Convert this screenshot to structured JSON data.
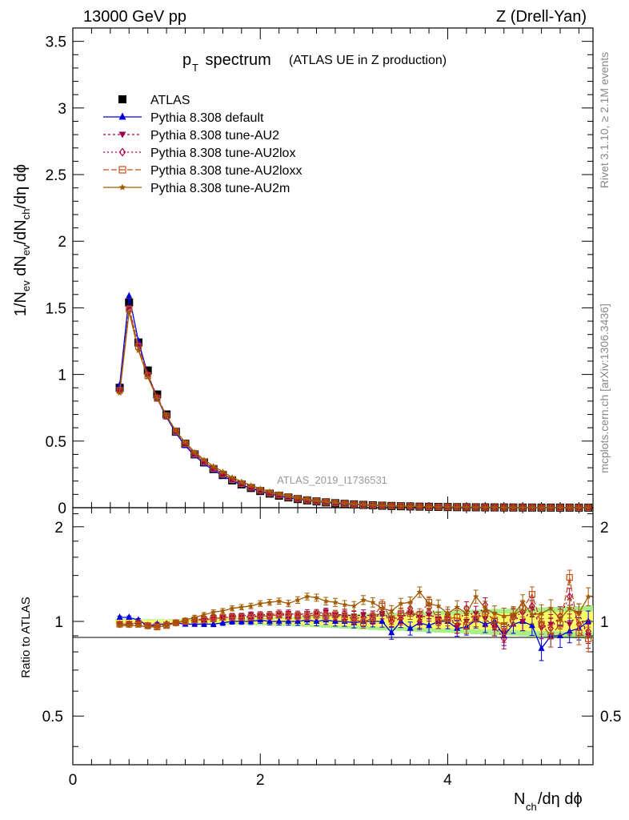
{
  "header": {
    "energy_label": "13000 GeV pp",
    "process_label": "Z (Drell-Yan)"
  },
  "side_labels": {
    "rivet": "Rivet 3.1.10, ≥ 2.1M events",
    "site": "mcplots.cern.ch [arXiv:1306.3436]"
  },
  "watermark": "ATLAS_2019_I1736531",
  "colors": {
    "ATLAS": "#000000",
    "default": "#0000dd",
    "AU2": "#99004d",
    "AU2lox": "#b3003b",
    "AU2loxx": "#c0501a",
    "AU2m": "#a05a00",
    "band_inner": "#ffff66",
    "band_outer": "#aaee88"
  },
  "chart_data": [
    {
      "type": "line",
      "panel": "main",
      "title_main": "p",
      "title_sub": "T",
      "title_word": " spectrum",
      "title_extra": "(ATLAS UE in Z production)",
      "ylabel": "1/N_ev dN_ev/dN_ch/dη dϕ",
      "ylim": [
        0,
        3.6
      ],
      "xlim": [
        0,
        5.55
      ],
      "yticks": [
        "0",
        "0.5",
        "1",
        "1.5",
        "2",
        "2.5",
        "3",
        "3.5"
      ],
      "grid": false,
      "legend_position": "top-left",
      "x": [
        0.5,
        0.6,
        0.7,
        0.8,
        0.9,
        1.0,
        1.1,
        1.2,
        1.3,
        1.4,
        1.5,
        1.6,
        1.7,
        1.8,
        1.9,
        2.0,
        2.1,
        2.2,
        2.3,
        2.4,
        2.5,
        2.6,
        2.7,
        2.8,
        2.9,
        3.0,
        3.1,
        3.2,
        3.3,
        3.4,
        3.5,
        3.6,
        3.7,
        3.8,
        3.9,
        4.0,
        4.1,
        4.2,
        4.3,
        4.4,
        4.5,
        4.6,
        4.7,
        4.8,
        4.9,
        5.0,
        5.1,
        5.2,
        5.3,
        5.4,
        5.5
      ],
      "series": [
        {
          "name": "ATLAS",
          "key": "ATLAS",
          "marker": "square-filled",
          "dash": "none",
          "values": [
            0.9,
            1.54,
            1.24,
            1.03,
            0.85,
            0.7,
            0.57,
            0.48,
            0.4,
            0.34,
            0.29,
            0.245,
            0.205,
            0.175,
            0.148,
            0.125,
            0.106,
            0.09,
            0.077,
            0.065,
            0.055,
            0.047,
            0.04,
            0.034,
            0.029,
            0.025,
            0.021,
            0.018,
            0.015,
            0.013,
            0.011,
            0.0095,
            0.008,
            0.007,
            0.006,
            0.005,
            0.0043,
            0.0037,
            0.0031,
            0.0027,
            0.0023,
            0.002,
            0.0017,
            0.0014,
            0.0012,
            0.001,
            0.0009,
            0.0008,
            0.0007,
            0.0006,
            0.0005
          ]
        },
        {
          "name": "Pythia 8.308 default",
          "key": "default",
          "marker": "triangle-up-filled",
          "dash": "none",
          "values": [
            0.92,
            1.59,
            1.25,
            1.0,
            0.82,
            0.68,
            0.56,
            0.465,
            0.39,
            0.33,
            0.282,
            0.24,
            0.2,
            0.172,
            0.145,
            0.123,
            0.104,
            0.089,
            0.076,
            0.064,
            0.054,
            0.046,
            0.039,
            0.033,
            0.028,
            0.024,
            0.02,
            0.017,
            0.015,
            0.013,
            0.011,
            0.009,
            0.008,
            0.007,
            0.006,
            0.005,
            0.0042,
            0.0036,
            0.003,
            0.0026,
            0.0022,
            0.0019,
            0.0016,
            0.0013,
            0.0011,
            0.0009,
            0.0008,
            0.0007,
            0.0006,
            0.0006,
            0.0005
          ]
        },
        {
          "name": "Pythia 8.308 tune-AU2",
          "key": "AU2",
          "marker": "triangle-down-filled",
          "dash": "3,3",
          "values": [
            0.88,
            1.5,
            1.22,
            1.0,
            0.83,
            0.69,
            0.57,
            0.48,
            0.405,
            0.348,
            0.298,
            0.254,
            0.214,
            0.182,
            0.155,
            0.131,
            0.111,
            0.095,
            0.081,
            0.068,
            0.058,
            0.049,
            0.042,
            0.036,
            0.031,
            0.026,
            0.022,
            0.019,
            0.016,
            0.014,
            0.012,
            0.01,
            0.0085,
            0.0073,
            0.0063,
            0.0054,
            0.0046,
            0.0039,
            0.0033,
            0.0028,
            0.0024,
            0.0021,
            0.0018,
            0.0015,
            0.0013,
            0.0011,
            0.0009,
            0.0008,
            0.0007,
            0.0006,
            0.0005
          ]
        },
        {
          "name": "Pythia 8.308 tune-AU2lox",
          "key": "AU2lox",
          "marker": "diamond-open",
          "dash": "2,3",
          "values": [
            0.88,
            1.49,
            1.22,
            1.0,
            0.83,
            0.69,
            0.575,
            0.482,
            0.404,
            0.346,
            0.296,
            0.252,
            0.212,
            0.18,
            0.153,
            0.13,
            0.11,
            0.094,
            0.08,
            0.067,
            0.057,
            0.048,
            0.041,
            0.035,
            0.03,
            0.025,
            0.021,
            0.018,
            0.016,
            0.014,
            0.012,
            0.01,
            0.0084,
            0.0072,
            0.0062,
            0.0053,
            0.0045,
            0.0038,
            0.0032,
            0.0028,
            0.0024,
            0.002,
            0.0017,
            0.0015,
            0.0013,
            0.0011,
            0.0009,
            0.0008,
            0.0007,
            0.0006,
            0.0005
          ]
        },
        {
          "name": "Pythia 8.308 tune-AU2loxx",
          "key": "AU2loxx",
          "marker": "square-open",
          "dash": "7,3",
          "values": [
            0.88,
            1.49,
            1.21,
            0.99,
            0.82,
            0.69,
            0.572,
            0.48,
            0.402,
            0.344,
            0.295,
            0.251,
            0.211,
            0.18,
            0.153,
            0.13,
            0.11,
            0.094,
            0.08,
            0.068,
            0.057,
            0.048,
            0.041,
            0.035,
            0.03,
            0.025,
            0.021,
            0.018,
            0.016,
            0.014,
            0.012,
            0.01,
            0.0083,
            0.0071,
            0.0061,
            0.0052,
            0.0044,
            0.0038,
            0.0032,
            0.0027,
            0.0023,
            0.002,
            0.0017,
            0.0015,
            0.0013,
            0.0011,
            0.0009,
            0.0008,
            0.0007,
            0.0006,
            0.0005
          ]
        },
        {
          "name": "Pythia 8.308 tune-AU2m",
          "key": "AU2m",
          "marker": "star",
          "dash": "none",
          "values": [
            0.86,
            1.47,
            1.18,
            0.98,
            0.82,
            0.69,
            0.576,
            0.49,
            0.418,
            0.36,
            0.312,
            0.27,
            0.228,
            0.196,
            0.168,
            0.143,
            0.122,
            0.104,
            0.089,
            0.075,
            0.064,
            0.054,
            0.046,
            0.039,
            0.033,
            0.028,
            0.024,
            0.02,
            0.017,
            0.015,
            0.013,
            0.011,
            0.0093,
            0.008,
            0.0069,
            0.0059,
            0.005,
            0.0043,
            0.0037,
            0.0031,
            0.0027,
            0.0023,
            0.002,
            0.0017,
            0.0014,
            0.0012,
            0.0011,
            0.0009,
            0.0008,
            0.0007,
            0.0006
          ]
        }
      ]
    },
    {
      "type": "line",
      "panel": "ratio",
      "ylabel": "Ratio to ATLAS",
      "xlabel_main": "N",
      "xlabel_sub": "ch",
      "xlabel_rest": "/dη dϕ",
      "xlim": [
        0,
        5.55
      ],
      "ylim": [
        0.35,
        2.3
      ],
      "xticks": [
        "0",
        "2",
        "4"
      ],
      "yticks": [
        "0.5",
        "1",
        "2"
      ],
      "grid": false,
      "x": [
        0.5,
        0.6,
        0.7,
        0.8,
        0.9,
        1.0,
        1.1,
        1.2,
        1.3,
        1.4,
        1.5,
        1.6,
        1.7,
        1.8,
        1.9,
        2.0,
        2.1,
        2.2,
        2.3,
        2.4,
        2.5,
        2.6,
        2.7,
        2.8,
        2.9,
        3.0,
        3.1,
        3.2,
        3.3,
        3.4,
        3.5,
        3.6,
        3.7,
        3.8,
        3.9,
        4.0,
        4.1,
        4.2,
        4.3,
        4.4,
        4.5,
        4.6,
        4.7,
        4.8,
        4.9,
        5.0,
        5.1,
        5.2,
        5.3,
        5.4,
        5.5
      ],
      "band_halfwidth": [
        0.01,
        0.01,
        0.01,
        0.01,
        0.01,
        0.01,
        0.01,
        0.01,
        0.01,
        0.012,
        0.012,
        0.013,
        0.014,
        0.015,
        0.016,
        0.017,
        0.018,
        0.02,
        0.02,
        0.022,
        0.024,
        0.026,
        0.028,
        0.03,
        0.032,
        0.034,
        0.036,
        0.038,
        0.04,
        0.04,
        0.042,
        0.044,
        0.046,
        0.048,
        0.05,
        0.05,
        0.052,
        0.054,
        0.056,
        0.058,
        0.06,
        0.06,
        0.062,
        0.064,
        0.066,
        0.068,
        0.07,
        0.07,
        0.072,
        0.074,
        0.076
      ],
      "series": [
        {
          "name": "Pythia 8.308 default",
          "key": "default",
          "marker": "triangle-up-filled",
          "dash": "none",
          "values": [
            1.03,
            1.03,
            1.01,
            0.97,
            0.98,
            0.98,
            0.99,
            0.98,
            0.98,
            0.98,
            0.98,
            0.99,
            1.0,
            1.0,
            1.0,
            1.01,
            1.0,
            1.0,
            1.0,
            1.0,
            1.01,
            1.0,
            1.01,
            1.0,
            1.0,
            0.99,
            1.0,
            1.0,
            1.0,
            0.92,
            1.0,
            0.95,
            0.99,
            0.97,
            1.0,
            1.0,
            0.95,
            0.96,
            1.01,
            0.98,
            1.0,
            0.9,
            0.98,
            1.0,
            0.97,
            0.82,
            0.9,
            0.9,
            0.93,
            0.95,
            1.0
          ]
        },
        {
          "name": "Pythia 8.308 tune-AU2",
          "key": "AU2",
          "marker": "triangle-down-filled",
          "dash": "3,3",
          "values": [
            0.98,
            0.98,
            0.99,
            0.97,
            0.97,
            0.98,
            0.99,
            1.0,
            1.01,
            1.02,
            1.03,
            1.03,
            1.04,
            1.04,
            1.05,
            1.05,
            1.05,
            1.06,
            1.06,
            1.05,
            1.06,
            1.06,
            1.07,
            1.05,
            1.05,
            1.04,
            1.05,
            1.04,
            1.06,
            1.02,
            1.03,
            1.06,
            1.03,
            1.05,
            1.02,
            1.04,
            0.97,
            1.0,
            1.06,
            1.02,
            0.96,
            0.92,
            1.04,
            1.0,
            1.1,
            0.95,
            0.98,
            1.02,
            0.98,
            1.06,
            0.9
          ]
        },
        {
          "name": "Pythia 8.308 tune-AU2lox",
          "key": "AU2lox",
          "marker": "diamond-open",
          "dash": "2,3",
          "values": [
            0.98,
            0.98,
            0.99,
            0.97,
            0.97,
            0.98,
            0.99,
            1.0,
            1.01,
            1.02,
            1.02,
            1.03,
            1.03,
            1.03,
            1.04,
            1.04,
            1.04,
            1.05,
            1.05,
            1.04,
            1.04,
            1.05,
            1.06,
            1.04,
            1.04,
            1.02,
            1.03,
            1.02,
            1.06,
            1.0,
            1.02,
            1.1,
            1.0,
            1.07,
            1.0,
            1.02,
            0.97,
            1.1,
            1.02,
            1.13,
            0.96,
            0.88,
            1.03,
            1.07,
            1.12,
            0.98,
            0.95,
            1.04,
            1.2,
            0.98,
            0.93
          ]
        },
        {
          "name": "Pythia 8.308 tune-AU2loxx",
          "key": "AU2loxx",
          "marker": "square-open",
          "dash": "7,3",
          "values": [
            0.98,
            0.98,
            0.98,
            0.97,
            0.96,
            0.97,
            0.99,
            1.0,
            1.01,
            1.01,
            1.02,
            1.03,
            1.03,
            1.03,
            1.03,
            1.04,
            1.04,
            1.05,
            1.04,
            1.04,
            1.04,
            1.05,
            1.04,
            1.05,
            1.03,
            1.02,
            0.99,
            1.03,
            1.13,
            1.02,
            1.06,
            1.06,
            1.05,
            1.15,
            1.0,
            1.02,
            1.03,
            0.97,
            1.02,
            1.06,
            1.01,
            0.97,
            1.04,
            1.1,
            1.22,
            0.98,
            0.9,
            0.98,
            1.38,
            0.92,
            0.88
          ]
        },
        {
          "name": "Pythia 8.308 tune-AU2m",
          "key": "AU2m",
          "marker": "star",
          "dash": "none",
          "values": [
            0.97,
            0.97,
            0.97,
            0.96,
            0.96,
            0.97,
            0.99,
            1.01,
            1.03,
            1.05,
            1.07,
            1.08,
            1.1,
            1.11,
            1.12,
            1.14,
            1.15,
            1.16,
            1.14,
            1.17,
            1.2,
            1.19,
            1.16,
            1.15,
            1.13,
            1.12,
            1.17,
            1.15,
            1.1,
            1.08,
            1.14,
            1.15,
            1.24,
            1.14,
            1.12,
            1.06,
            1.11,
            1.06,
            1.2,
            1.1,
            1.06,
            1.04,
            1.05,
            1.15,
            1.05,
            1.06,
            1.1,
            1.02,
            1.1,
            1.06,
            1.2
          ]
        }
      ]
    }
  ]
}
